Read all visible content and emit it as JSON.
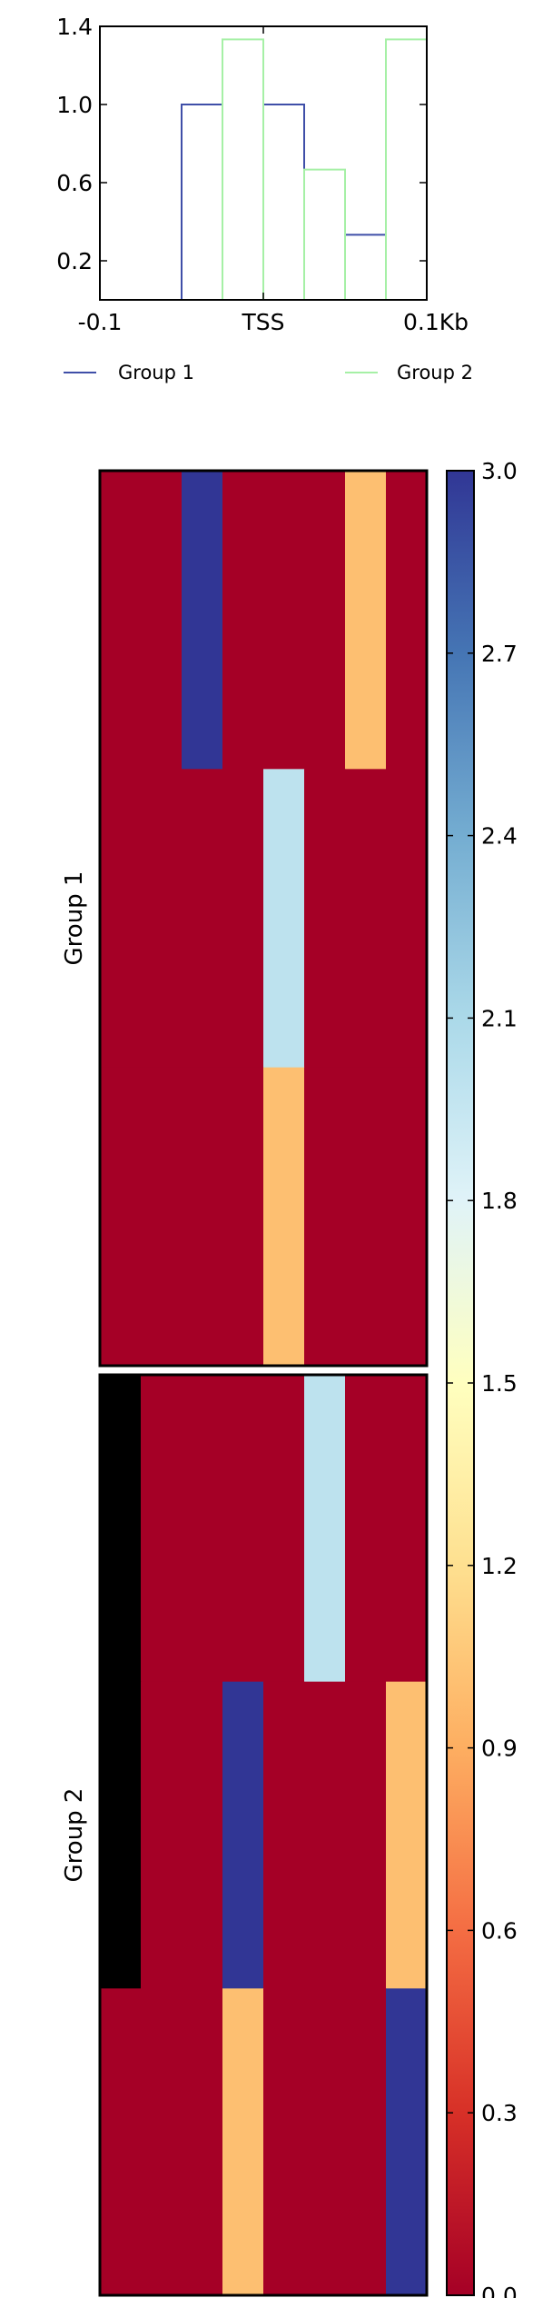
{
  "chart_data": [
    {
      "type": "line",
      "title": "",
      "xlabel": "",
      "ylabel": "",
      "x_tick_labels": [
        "-0.1",
        "TSS",
        "0.1Kb"
      ],
      "yticks": [
        0.2,
        0.6,
        1.0,
        1.4
      ],
      "y_tick_labels": [
        "0.2",
        "0.6",
        "1.0",
        "1.4"
      ],
      "ylim": [
        0.0,
        1.4
      ],
      "bins": 8,
      "series": [
        {
          "name": "Group 1",
          "color": "#3f4fa8",
          "values": [
            0,
            0,
            1.0,
            0,
            1.0,
            0,
            0.333,
            0
          ]
        },
        {
          "name": "Group 2",
          "color": "#a6f0a6",
          "values": [
            0,
            0,
            0,
            1.333,
            0,
            0.667,
            0,
            1.333
          ]
        }
      ],
      "legend": {
        "placement": "below",
        "entries": [
          "Group 1",
          "Group 2"
        ]
      }
    },
    {
      "type": "heatmap",
      "groups": [
        {
          "label": "Group 1",
          "matrix": [
            [
              0,
              0,
              3,
              0,
              0,
              0,
              1,
              0
            ],
            [
              0,
              0,
              0,
              0,
              2,
              0,
              0,
              0
            ],
            [
              0,
              0,
              0,
              0,
              1,
              0,
              0,
              0
            ]
          ]
        },
        {
          "label": "Group 2",
          "matrix": [
            [
              null,
              0,
              0,
              0,
              0,
              2,
              0,
              0
            ],
            [
              null,
              0,
              0,
              3,
              0,
              0,
              0,
              1
            ],
            [
              0,
              0,
              0,
              1,
              0,
              0,
              0,
              3
            ]
          ]
        }
      ],
      "colorbar": {
        "min": 0.0,
        "max": 3.0,
        "ticks": [
          0.0,
          0.3,
          0.6,
          0.9,
          1.2,
          1.5,
          1.8,
          2.1,
          2.4,
          2.7,
          3.0
        ],
        "tick_labels": [
          "0.0",
          "0.3",
          "0.6",
          "0.9",
          "1.2",
          "1.5",
          "1.8",
          "2.1",
          "2.4",
          "2.7",
          "3.0"
        ],
        "colormap": "RdYlBu",
        "missing_color": "#000000"
      }
    }
  ]
}
